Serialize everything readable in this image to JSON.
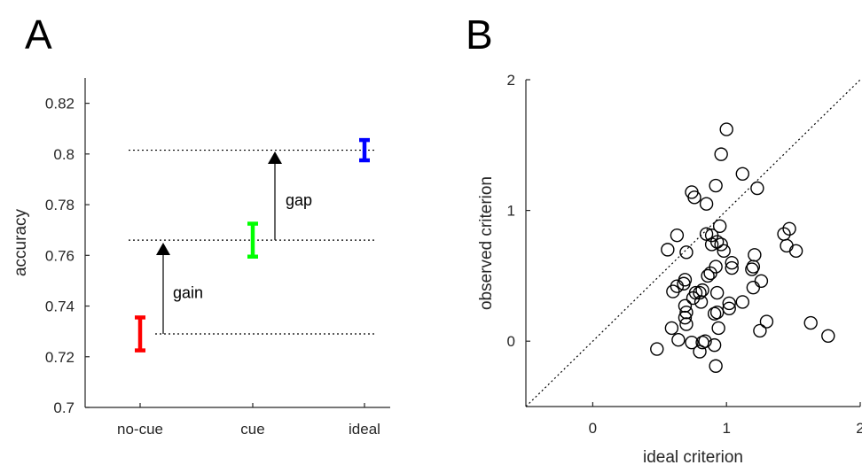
{
  "chart_data": [
    {
      "panel": "A",
      "type": "errorbar",
      "categories": [
        "no-cue",
        "cue",
        "ideal"
      ],
      "ylabel": "accuracy",
      "xlabel": "",
      "ylim": [
        0.7,
        0.83
      ],
      "yticks": [
        0.7,
        0.72,
        0.74,
        0.76,
        0.78,
        0.8,
        0.82
      ],
      "ytick_labels": [
        "0.7",
        "0.72",
        "0.74",
        "0.76",
        "0.78",
        "0.8",
        "0.82"
      ],
      "points": [
        {
          "category": "no-cue",
          "value": 0.729,
          "low": 0.7225,
          "high": 0.7355,
          "color": "#ff0000"
        },
        {
          "category": "cue",
          "value": 0.766,
          "low": 0.7595,
          "high": 0.7725,
          "color": "#00ff00"
        },
        {
          "category": "ideal",
          "value": 0.8015,
          "low": 0.7975,
          "high": 0.8055,
          "color": "#0000ff"
        }
      ],
      "reference_lines": [
        0.729,
        0.766,
        0.8015
      ],
      "annotations": [
        {
          "text": "gain",
          "from": 0.729,
          "to": 0.7615
        },
        {
          "text": "gap",
          "from": 0.766,
          "to": 0.7975
        }
      ]
    },
    {
      "panel": "B",
      "type": "scatter",
      "xlabel": "ideal criterion",
      "ylabel": "observed criterion",
      "xlim": [
        -0.5,
        2.0
      ],
      "ylim": [
        -0.5,
        2.0
      ],
      "xticks": [
        0,
        1,
        2
      ],
      "xtick_labels": [
        "0",
        "1",
        "2"
      ],
      "yticks": [
        0,
        1,
        2
      ],
      "ytick_labels": [
        "0",
        "1",
        "2"
      ],
      "diagonal": true,
      "points": [
        {
          "x": 1.0,
          "y": 1.62
        },
        {
          "x": 0.96,
          "y": 1.43
        },
        {
          "x": 1.12,
          "y": 1.28
        },
        {
          "x": 0.92,
          "y": 1.19
        },
        {
          "x": 1.23,
          "y": 1.17
        },
        {
          "x": 0.74,
          "y": 1.14
        },
        {
          "x": 0.76,
          "y": 1.1
        },
        {
          "x": 0.85,
          "y": 1.05
        },
        {
          "x": 0.95,
          "y": 0.88
        },
        {
          "x": 1.47,
          "y": 0.86
        },
        {
          "x": 1.43,
          "y": 0.82
        },
        {
          "x": 0.85,
          "y": 0.82
        },
        {
          "x": 0.89,
          "y": 0.81
        },
        {
          "x": 0.63,
          "y": 0.81
        },
        {
          "x": 0.93,
          "y": 0.76
        },
        {
          "x": 0.89,
          "y": 0.74
        },
        {
          "x": 0.96,
          "y": 0.74
        },
        {
          "x": 1.45,
          "y": 0.73
        },
        {
          "x": 0.56,
          "y": 0.7
        },
        {
          "x": 1.52,
          "y": 0.69
        },
        {
          "x": 0.98,
          "y": 0.69
        },
        {
          "x": 0.7,
          "y": 0.68
        },
        {
          "x": 1.21,
          "y": 0.66
        },
        {
          "x": 1.04,
          "y": 0.6
        },
        {
          "x": 0.92,
          "y": 0.57
        },
        {
          "x": 1.2,
          "y": 0.57
        },
        {
          "x": 1.04,
          "y": 0.56
        },
        {
          "x": 1.19,
          "y": 0.55
        },
        {
          "x": 0.88,
          "y": 0.52
        },
        {
          "x": 0.86,
          "y": 0.5
        },
        {
          "x": 0.69,
          "y": 0.47
        },
        {
          "x": 1.26,
          "y": 0.46
        },
        {
          "x": 0.68,
          "y": 0.44
        },
        {
          "x": 0.63,
          "y": 0.42
        },
        {
          "x": 1.2,
          "y": 0.41
        },
        {
          "x": 0.6,
          "y": 0.38
        },
        {
          "x": 0.82,
          "y": 0.39
        },
        {
          "x": 0.77,
          "y": 0.37
        },
        {
          "x": 0.8,
          "y": 0.37
        },
        {
          "x": 0.93,
          "y": 0.37
        },
        {
          "x": 0.75,
          "y": 0.33
        },
        {
          "x": 1.12,
          "y": 0.3
        },
        {
          "x": 0.81,
          "y": 0.3
        },
        {
          "x": 1.02,
          "y": 0.29
        },
        {
          "x": 0.69,
          "y": 0.27
        },
        {
          "x": 1.02,
          "y": 0.25
        },
        {
          "x": 0.7,
          "y": 0.22
        },
        {
          "x": 0.93,
          "y": 0.22
        },
        {
          "x": 0.91,
          "y": 0.21
        },
        {
          "x": 0.69,
          "y": 0.18
        },
        {
          "x": 1.3,
          "y": 0.15
        },
        {
          "x": 0.7,
          "y": 0.13
        },
        {
          "x": 1.63,
          "y": 0.14
        },
        {
          "x": 0.59,
          "y": 0.1
        },
        {
          "x": 0.94,
          "y": 0.1
        },
        {
          "x": 1.25,
          "y": 0.08
        },
        {
          "x": 1.76,
          "y": 0.04
        },
        {
          "x": 0.64,
          "y": 0.01
        },
        {
          "x": 0.84,
          "y": 0.0
        },
        {
          "x": 0.74,
          "y": -0.01
        },
        {
          "x": 0.82,
          "y": -0.01
        },
        {
          "x": 0.91,
          "y": -0.03
        },
        {
          "x": 0.8,
          "y": -0.08
        },
        {
          "x": 0.48,
          "y": -0.06
        },
        {
          "x": 0.92,
          "y": -0.19
        }
      ]
    }
  ]
}
